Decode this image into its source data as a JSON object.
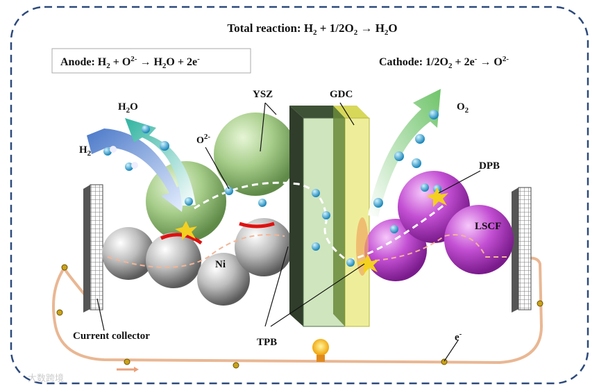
{
  "title": {
    "parts": [
      "Total reaction: H",
      "2",
      " + 1/2O",
      "2",
      " → H",
      "2",
      "O"
    ]
  },
  "anode": {
    "parts": [
      "Anode: H",
      "2",
      " + O",
      "2-",
      " → H",
      "2",
      "O + 2e",
      "-"
    ]
  },
  "cathode": {
    "parts": [
      "Cathode: 1/2O",
      "2",
      " + 2e",
      "-",
      " → O",
      "2-"
    ]
  },
  "labels": {
    "ysz": "YSZ",
    "gdc": "GDC",
    "o2minus": [
      "O",
      "2-"
    ],
    "h2o": [
      "H",
      "2",
      "O"
    ],
    "h2": [
      "H",
      "2"
    ],
    "o2": [
      "O",
      "2"
    ],
    "dpb": "DPB",
    "lscf": "LSCF",
    "ni": "Ni",
    "tpb": "TPB",
    "current_collector": "Current collector",
    "electron": [
      "e",
      "-"
    ]
  },
  "watermark": "大数跨境"
}
